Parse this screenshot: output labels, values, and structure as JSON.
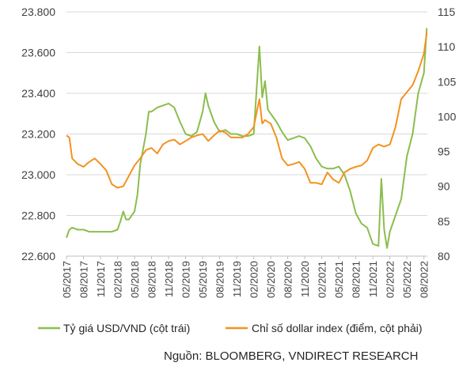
{
  "chart_data": {
    "type": "line",
    "x_ticks": [
      "05/2017",
      "08/2017",
      "11/2017",
      "02/2018",
      "05/2018",
      "08/2018",
      "11/2018",
      "02/2019",
      "05/2019",
      "08/2019",
      "11/2019",
      "02/2020",
      "05/2020",
      "08/2020",
      "11/2020",
      "02/2021",
      "05/2021",
      "08/2021",
      "11/2021",
      "02/2022",
      "05/2022",
      "08/2022"
    ],
    "y_left": {
      "ticks": [
        "22.600",
        "22.800",
        "23.000",
        "23.200",
        "23.400",
        "23.600",
        "23.800"
      ],
      "values": [
        22600,
        22800,
        23000,
        23200,
        23400,
        23600,
        23800
      ],
      "range": [
        22600,
        23800
      ]
    },
    "y_right": {
      "ticks": [
        "80",
        "85",
        "90",
        "95",
        "100",
        "105",
        "110",
        "115"
      ],
      "values": [
        80,
        85,
        90,
        95,
        100,
        105,
        110,
        115
      ],
      "range": [
        80,
        115
      ]
    },
    "grid": "horizontal",
    "legend_position": "bottom",
    "series": [
      {
        "name": "Tỷ giá USD/VND (cột trái)",
        "axis": "left",
        "color": "#8cbd4e",
        "x": [
          "05/2017",
          "05/2017",
          "06/2017",
          "07/2017",
          "08/2017",
          "09/2017",
          "10/2017",
          "11/2017",
          "12/2017",
          "01/2018",
          "02/2018",
          "02/2018",
          "03/2018",
          "03/2018",
          "04/2018",
          "05/2018",
          "05/2018",
          "06/2018",
          "07/2018",
          "07/2018",
          "08/2018",
          "09/2018",
          "10/2018",
          "11/2018",
          "12/2018",
          "01/2019",
          "02/2019",
          "03/2019",
          "04/2019",
          "05/2019",
          "05/2019",
          "06/2019",
          "07/2019",
          "08/2019",
          "09/2019",
          "10/2019",
          "11/2019",
          "12/2019",
          "01/2020",
          "02/2020",
          "03/2020",
          "03/2020",
          "04/2020",
          "04/2020",
          "05/2020",
          "06/2020",
          "07/2020",
          "08/2020",
          "09/2020",
          "10/2020",
          "11/2020",
          "12/2020",
          "01/2021",
          "02/2021",
          "03/2021",
          "04/2021",
          "05/2021",
          "06/2021",
          "07/2021",
          "08/2021",
          "09/2021",
          "10/2021",
          "11/2021",
          "12/2021",
          "12/2021",
          "01/2022",
          "01/2022",
          "02/2022",
          "03/2022",
          "04/2022",
          "05/2022",
          "06/2022",
          "07/2022",
          "08/2022",
          "08/2022"
        ],
        "y": [
          22690,
          22730,
          22740,
          22730,
          22730,
          22720,
          22720,
          22720,
          22720,
          22720,
          22730,
          22770,
          22820,
          22780,
          22780,
          22820,
          22900,
          23050,
          23200,
          23310,
          23310,
          23330,
          23340,
          23350,
          23330,
          23260,
          23200,
          23190,
          23210,
          23310,
          23400,
          23340,
          23260,
          23210,
          23220,
          23200,
          23200,
          23190,
          23190,
          23200,
          23630,
          23380,
          23460,
          23320,
          23300,
          23260,
          23210,
          23170,
          23180,
          23190,
          23180,
          23140,
          23080,
          23040,
          23030,
          23030,
          23040,
          23000,
          22920,
          22810,
          22760,
          22740,
          22660,
          22650,
          22980,
          22730,
          22640,
          22720,
          22800,
          22880,
          23090,
          23200,
          23400,
          23500,
          23720
        ]
      },
      {
        "name": "Chỉ số dollar index (điểm, cột phải)",
        "axis": "right",
        "color": "#f39220",
        "x": [
          "05/2017",
          "05/2017",
          "06/2017",
          "07/2017",
          "08/2017",
          "09/2017",
          "10/2017",
          "11/2017",
          "12/2017",
          "01/2018",
          "02/2018",
          "03/2018",
          "04/2018",
          "05/2018",
          "06/2018",
          "07/2018",
          "08/2018",
          "09/2018",
          "10/2018",
          "11/2018",
          "12/2018",
          "01/2019",
          "02/2019",
          "03/2019",
          "04/2019",
          "05/2019",
          "06/2019",
          "07/2019",
          "08/2019",
          "09/2019",
          "10/2019",
          "11/2019",
          "12/2019",
          "01/2020",
          "02/2020",
          "03/2020",
          "03/2020",
          "04/2020",
          "05/2020",
          "06/2020",
          "07/2020",
          "08/2020",
          "09/2020",
          "10/2020",
          "11/2020",
          "12/2020",
          "01/2021",
          "02/2021",
          "03/2021",
          "04/2021",
          "05/2021",
          "06/2021",
          "07/2021",
          "08/2021",
          "09/2021",
          "10/2021",
          "11/2021",
          "12/2021",
          "01/2022",
          "02/2022",
          "03/2022",
          "04/2022",
          "05/2022",
          "06/2022",
          "07/2022",
          "08/2022",
          "08/2022"
        ],
        "y": [
          97.3,
          97.0,
          94.0,
          93.2,
          92.8,
          93.5,
          94.0,
          93.2,
          92.3,
          90.3,
          89.8,
          90.0,
          91.5,
          93.0,
          94.0,
          95.2,
          95.5,
          94.7,
          96.0,
          96.5,
          96.7,
          96.0,
          96.5,
          97.0,
          97.3,
          97.5,
          96.5,
          97.3,
          98.0,
          97.7,
          97.0,
          97.0,
          97.0,
          97.5,
          98.5,
          102.5,
          99.0,
          99.5,
          99.0,
          97.0,
          94.0,
          93.0,
          93.2,
          93.5,
          92.5,
          90.5,
          90.5,
          90.3,
          92.0,
          91.0,
          90.5,
          92.0,
          92.5,
          92.8,
          93.0,
          93.7,
          95.5,
          96.0,
          95.7,
          96.0,
          98.5,
          102.5,
          103.5,
          104.5,
          106.5,
          109.0,
          112.0
        ]
      }
    ]
  },
  "legend": [
    {
      "label": "Tỷ giá USD/VND (cột trái)",
      "color": "#8cbd4e"
    },
    {
      "label": "Chỉ số dollar index (điểm, cột phải)",
      "color": "#f39220"
    }
  ],
  "source": "Nguồn: BLOOMBERG, VNDIRECT RESEARCH"
}
